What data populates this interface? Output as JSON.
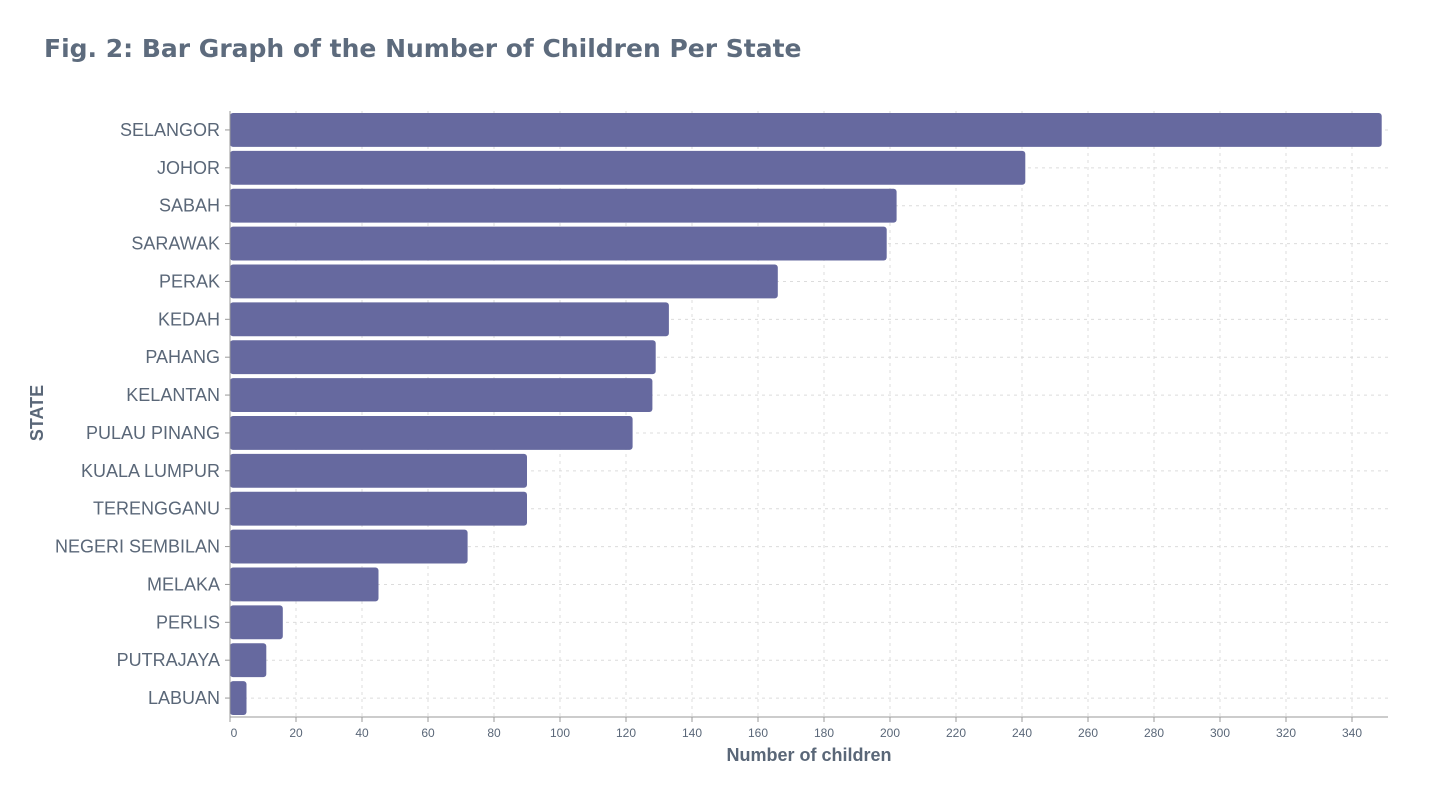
{
  "title": "Fig. 2: Bar Graph of the Number of Children Per State",
  "colors": {
    "bar": "#66699f",
    "text": "#5a6778",
    "grid": "#dcdcdc",
    "axis": "#9a9a9a"
  },
  "chart_data": {
    "type": "bar",
    "orientation": "horizontal",
    "categories": [
      "SELANGOR",
      "JOHOR",
      "SABAH",
      "SARAWAK",
      "PERAK",
      "KEDAH",
      "PAHANG",
      "KELANTAN",
      "PULAU PINANG",
      "KUALA LUMPUR",
      "TERENGGANU",
      "NEGERI SEMBILAN",
      "MELAKA",
      "PERLIS",
      "PUTRAJAYA",
      "LABUAN"
    ],
    "values": [
      349,
      241,
      202,
      199,
      166,
      133,
      129,
      128,
      122,
      90,
      90,
      72,
      45,
      16,
      11,
      5
    ],
    "xlabel": "Number of children",
    "ylabel": "STATE",
    "xlim": [
      0,
      350
    ],
    "xticks": [
      0,
      20,
      40,
      60,
      80,
      100,
      120,
      140,
      160,
      180,
      200,
      220,
      240,
      260,
      280,
      300,
      320,
      340
    ],
    "grid": true
  }
}
